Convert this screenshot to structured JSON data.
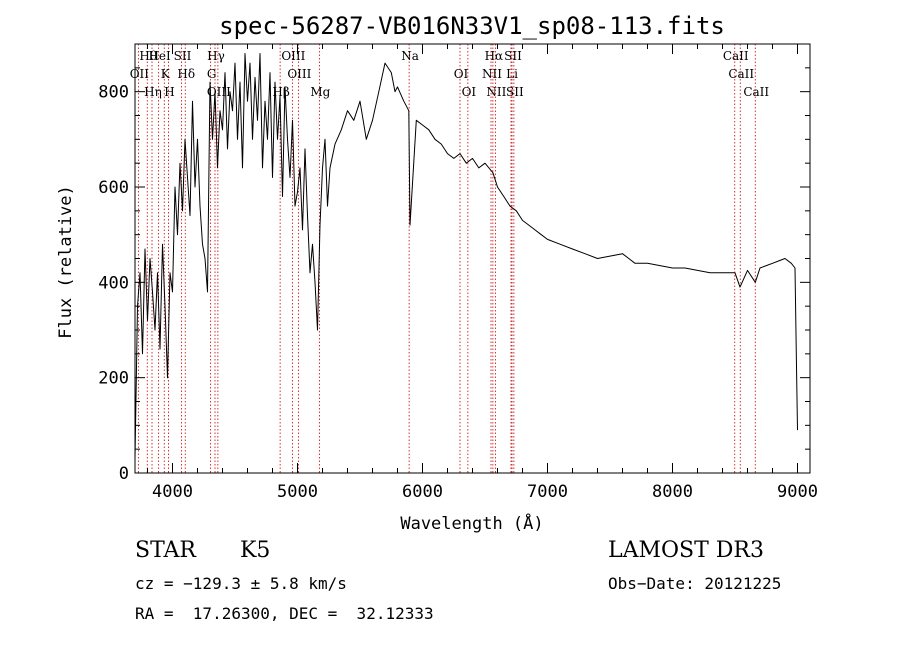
{
  "chart_data": {
    "type": "line",
    "title": "spec-56287-VB016N33V1_sp08-113.fits",
    "xlabel": "Wavelength (Å)",
    "ylabel": "Flux (relative)",
    "xlim": [
      3700,
      9100
    ],
    "ylim": [
      0,
      900
    ],
    "xticks": [
      4000,
      5000,
      6000,
      7000,
      8000,
      9000
    ],
    "yticks": [
      0,
      200,
      400,
      600,
      800
    ],
    "series": [
      {
        "name": "flux",
        "x": [
          3700,
          3720,
          3740,
          3760,
          3780,
          3800,
          3820,
          3840,
          3860,
          3880,
          3900,
          3920,
          3940,
          3960,
          3980,
          4000,
          4020,
          4040,
          4060,
          4080,
          4100,
          4120,
          4140,
          4160,
          4180,
          4200,
          4220,
          4240,
          4260,
          4280,
          4300,
          4320,
          4340,
          4360,
          4380,
          4400,
          4420,
          4440,
          4460,
          4480,
          4500,
          4520,
          4540,
          4560,
          4580,
          4600,
          4620,
          4640,
          4660,
          4680,
          4700,
          4720,
          4740,
          4760,
          4780,
          4800,
          4820,
          4840,
          4860,
          4880,
          4900,
          4920,
          4940,
          4960,
          4980,
          5000,
          5020,
          5040,
          5060,
          5080,
          5100,
          5120,
          5140,
          5160,
          5180,
          5200,
          5220,
          5240,
          5260,
          5300,
          5350,
          5400,
          5450,
          5500,
          5550,
          5600,
          5650,
          5700,
          5750,
          5780,
          5800,
          5850,
          5890,
          5900,
          5950,
          6000,
          6050,
          6100,
          6150,
          6200,
          6250,
          6300,
          6350,
          6400,
          6450,
          6500,
          6563,
          6600,
          6650,
          6700,
          6750,
          6800,
          6850,
          6900,
          6950,
          7000,
          7100,
          7200,
          7300,
          7400,
          7500,
          7600,
          7650,
          7700,
          7800,
          7900,
          8000,
          8100,
          8200,
          8300,
          8400,
          8500,
          8540,
          8600,
          8662,
          8700,
          8750,
          8800,
          8850,
          8900,
          8950,
          8980,
          8990,
          9000
        ],
        "values": [
          30,
          350,
          420,
          250,
          470,
          320,
          450,
          380,
          300,
          420,
          260,
          480,
          350,
          200,
          420,
          380,
          600,
          500,
          650,
          550,
          700,
          620,
          540,
          780,
          600,
          700,
          560,
          480,
          450,
          380,
          820,
          700,
          800,
          640,
          760,
          720,
          840,
          680,
          800,
          760,
          860,
          700,
          820,
          640,
          880,
          780,
          860,
          700,
          830,
          740,
          880,
          640,
          780,
          700,
          840,
          620,
          820,
          700,
          790,
          580,
          810,
          700,
          620,
          740,
          560,
          590,
          640,
          510,
          680,
          540,
          420,
          480,
          400,
          300,
          520,
          640,
          700,
          560,
          640,
          690,
          720,
          760,
          740,
          780,
          700,
          740,
          800,
          860,
          840,
          800,
          810,
          780,
          760,
          520,
          740,
          730,
          720,
          700,
          690,
          670,
          660,
          670,
          650,
          660,
          640,
          650,
          630,
          600,
          580,
          560,
          550,
          530,
          520,
          510,
          500,
          490,
          480,
          470,
          460,
          450,
          455,
          460,
          450,
          440,
          440,
          435,
          430,
          430,
          425,
          420,
          420,
          420,
          390,
          425,
          400,
          430,
          435,
          440,
          445,
          450,
          440,
          430,
          250,
          90
        ]
      }
    ],
    "lines": [
      {
        "label": "Hθ",
        "x": 3798
      },
      {
        "label": "OII",
        "x": 3727
      },
      {
        "label": "Hη",
        "x": 3836
      },
      {
        "label": "HeI",
        "x": 3889
      },
      {
        "label": "K",
        "x": 3934
      },
      {
        "label": "H",
        "x": 3968
      },
      {
        "label": "SII",
        "x": 4072
      },
      {
        "label": "Hδ",
        "x": 4102
      },
      {
        "label": "OIII",
        "x": 4363
      },
      {
        "label": "Hγ",
        "x": 4340
      },
      {
        "label": "G",
        "x": 4305
      },
      {
        "label": "Hβ",
        "x": 4861
      },
      {
        "label": "OIII",
        "x": 4959
      },
      {
        "label": "OIII",
        "x": 5007
      },
      {
        "label": "Mg",
        "x": 5175
      },
      {
        "label": "Na",
        "x": 5893
      },
      {
        "label": "OI",
        "x": 6300
      },
      {
        "label": "OI",
        "x": 6363
      },
      {
        "label": "Hα",
        "x": 6563
      },
      {
        "label": "NII",
        "x": 6548
      },
      {
        "label": "NII",
        "x": 6583
      },
      {
        "label": "SII",
        "x": 6716
      },
      {
        "label": "Li",
        "x": 6708
      },
      {
        "label": "SII",
        "x": 6731
      },
      {
        "label": "CaII",
        "x": 8498
      },
      {
        "label": "CaII",
        "x": 8542
      },
      {
        "label": "CaII",
        "x": 8662
      }
    ]
  },
  "info": {
    "class": "STAR",
    "subclass": "K5",
    "cz": "cz = −129.3 ± 5.8 km/s",
    "radec": "RA =  17.26300, DEC =  32.12333",
    "survey": "LAMOST DR3",
    "obsdate": "Obs−Date: 20121225"
  },
  "colors": {
    "line": "#000000",
    "marker": "#cc0000",
    "axes": "#000000",
    "background": "#ffffff"
  }
}
